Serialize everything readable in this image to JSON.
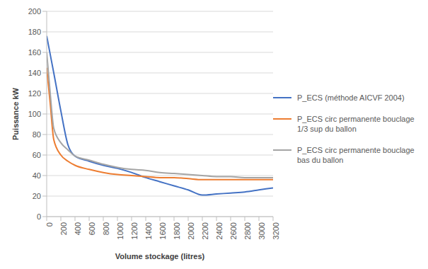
{
  "chart_data": {
    "type": "line",
    "x_label": "Volume stockage  (litres)",
    "y_label": "Puissance  kW",
    "x": [
      0,
      50,
      100,
      200,
      300,
      400,
      600,
      800,
      1000,
      1200,
      1400,
      1600,
      1800,
      2000,
      2200,
      2400,
      2600,
      2800,
      3000,
      3200
    ],
    "series": [
      {
        "name": "P_ECS (méthode AICVF 2004)",
        "color": "#4472c4",
        "values": [
          176,
          158,
          140,
          103,
          70,
          59,
          54,
          50,
          47,
          43,
          38,
          34,
          30,
          26,
          21,
          22,
          23,
          24,
          26,
          28
        ]
      },
      {
        "name": "P_ECS circ permanente bouclage 1/3 sup du ballon",
        "color": "#ed7d31",
        "values": [
          145,
          110,
          75,
          60,
          54,
          50,
          46,
          43,
          41,
          40,
          39,
          38,
          38,
          37,
          36,
          36,
          36,
          36,
          36,
          36
        ]
      },
      {
        "name": "P_ECS circ permanente bouclage bas du ballon",
        "color": "#a5a5a5",
        "values": [
          160,
          120,
          86,
          72,
          65,
          59,
          55,
          51,
          48,
          46,
          45,
          43,
          42,
          41,
          40,
          39,
          39,
          38,
          38,
          38
        ]
      }
    ],
    "xlim": [
      0,
      3200
    ],
    "xticks": [
      0,
      200,
      400,
      600,
      800,
      1000,
      1200,
      1400,
      1600,
      1800,
      2000,
      2200,
      2400,
      2600,
      2800,
      3000,
      3200
    ],
    "ylim": [
      0,
      200
    ],
    "yticks": [
      0,
      20,
      40,
      60,
      80,
      100,
      120,
      140,
      160,
      180,
      200
    ],
    "grid": true,
    "legend": "right"
  }
}
